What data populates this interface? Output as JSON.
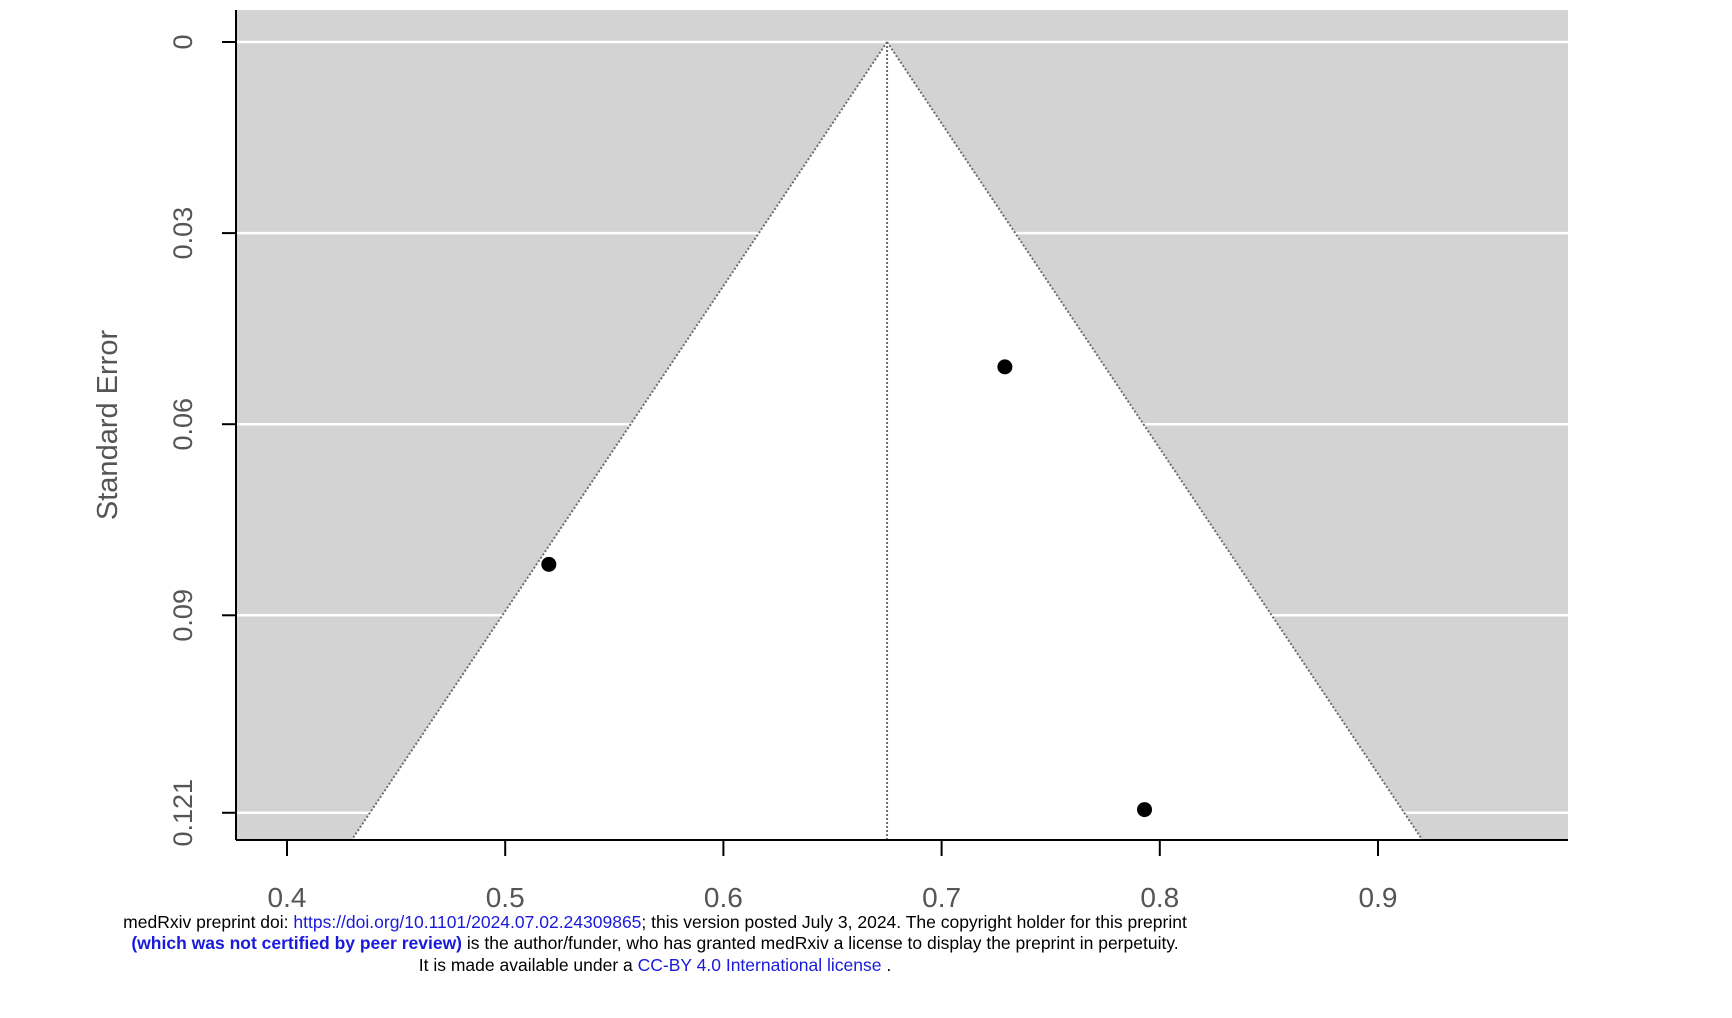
{
  "chart_data": {
    "type": "scatter",
    "plot_kind": "funnel plot",
    "title": "",
    "xlabel": "",
    "ylabel": "Standard Error",
    "xlim": [
      0.37,
      0.98
    ],
    "ylim": [
      0.1237,
      -0.0045
    ],
    "y_axis_inverted": true,
    "x_ticks": [
      0.4,
      0.5,
      0.6,
      0.7,
      0.8,
      0.9
    ],
    "x_tick_labels": [
      "0.4",
      "0.5",
      "0.6",
      "0.7",
      "0.8",
      "0.9"
    ],
    "y_ticks": [
      0,
      0.03,
      0.06,
      0.09,
      0.121
    ],
    "y_tick_labels": [
      "0",
      "0.03",
      "0.06",
      "0.09",
      "0.121"
    ],
    "grid": true,
    "pooled_estimate": 0.675,
    "funnel_left_at_max_se": 0.438,
    "funnel_right_at_max_se": 0.912,
    "funnel_max_se": 0.121,
    "points": [
      {
        "x": 0.52,
        "y": 0.082
      },
      {
        "x": 0.729,
        "y": 0.051
      },
      {
        "x": 0.793,
        "y": 0.1205
      }
    ],
    "colors": {
      "background": "#d3d3d3",
      "funnel_fill": "#ffffff",
      "gridline": "#ffffff",
      "point": "#000000",
      "link": "#1a1adb"
    }
  },
  "banner": {
    "line1_prefix": "medRxiv preprint doi: ",
    "line1_link": "https://doi.org/10.1101/2024.07.02.24309865",
    "line1_suffix": "; this version posted July 3, 2024. The copyright holder for this preprint",
    "line2_bold": "(which was not certified by peer review)",
    "line2_suffix": " is the author/funder, who has granted medRxiv a license to display the preprint in perpetuity.",
    "line3_prefix": "It is made available under a ",
    "line3_link": "CC-BY 4.0 International license",
    "line3_suffix": " ."
  }
}
